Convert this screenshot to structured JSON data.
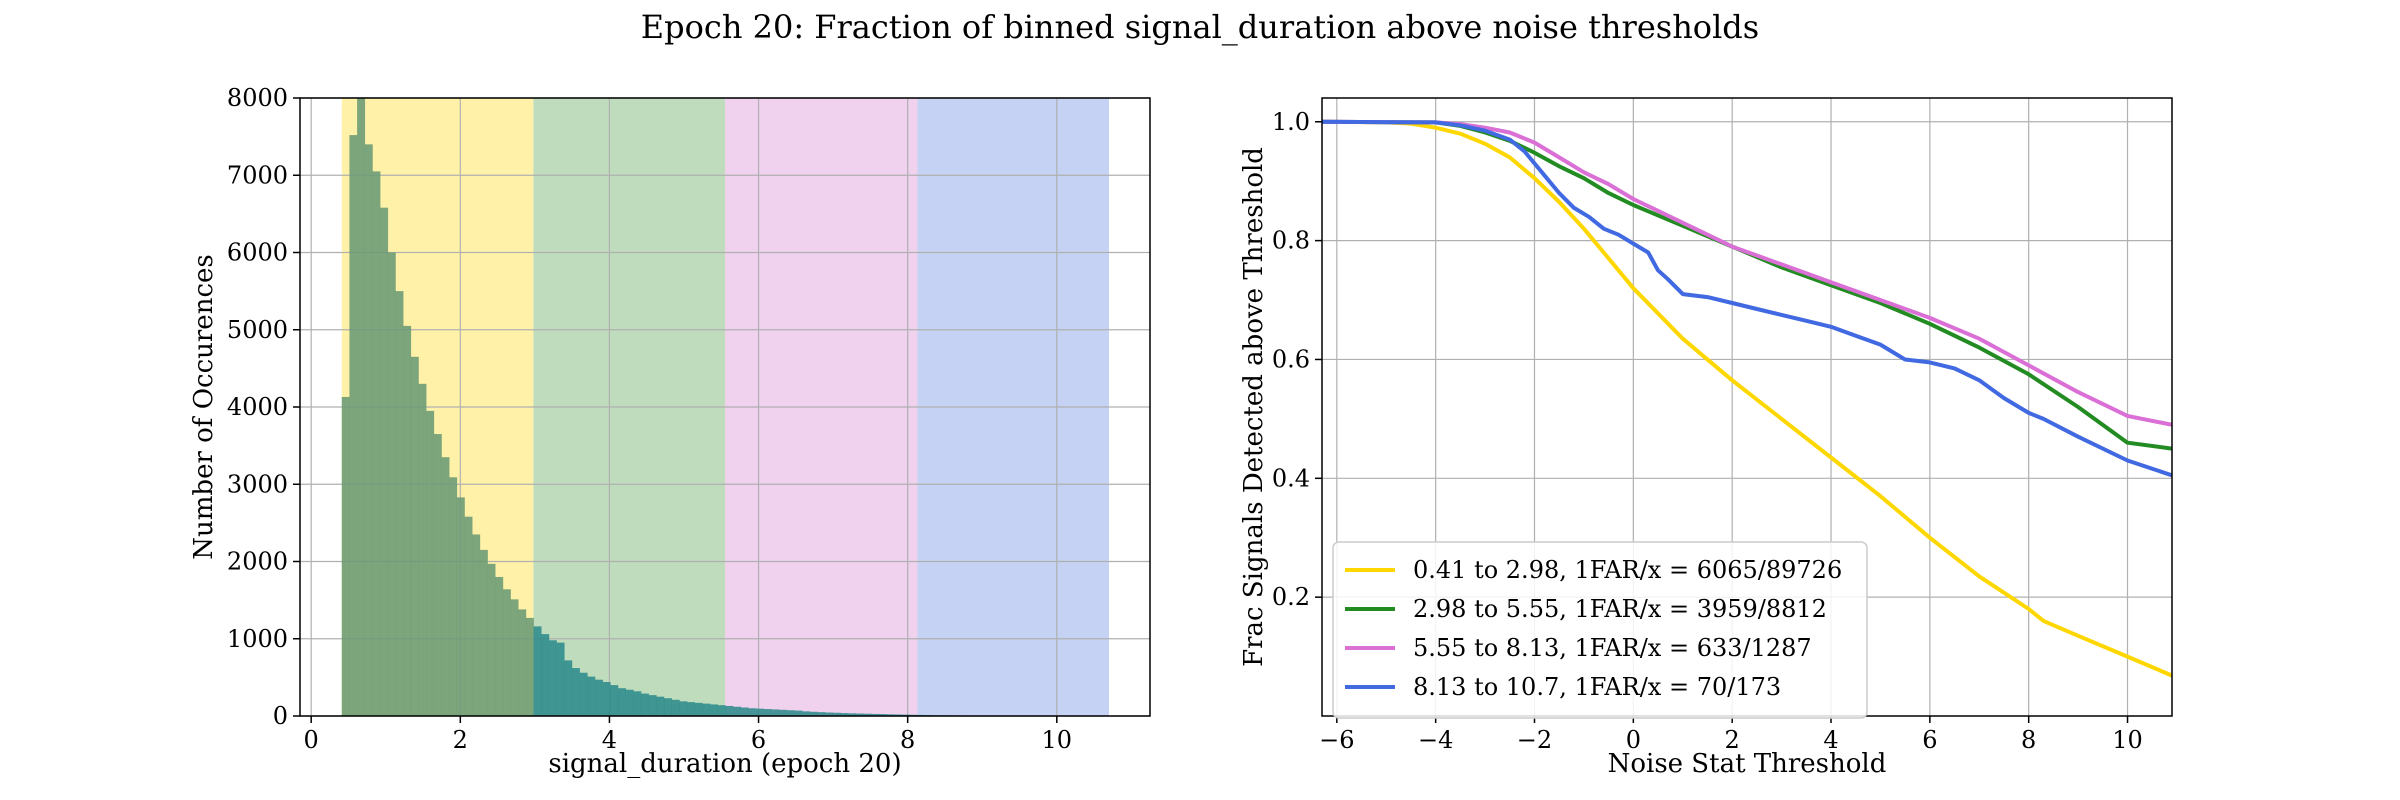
{
  "figure": {
    "suptitle": "Epoch 20: Fraction of binned signal_duration above noise thresholds"
  },
  "colors": {
    "hist_fill": "#6b9a74",
    "hist_tail": "#2e8b8b",
    "grid": "#b0b0b0",
    "bin_shades": [
      "#fff2a8",
      "#bfdcbc",
      "#f0d2ef",
      "#c5d2f3"
    ]
  },
  "chart_data": [
    {
      "type": "bar",
      "subtype": "histogram",
      "xlabel": "signal_duration (epoch 20)",
      "ylabel": "Number of Occurences",
      "xlim": [
        -0.15,
        11.25
      ],
      "ylim": [
        0,
        8000
      ],
      "xticks": [
        0,
        2,
        4,
        6,
        8,
        10
      ],
      "yticks": [
        0,
        1000,
        2000,
        3000,
        4000,
        5000,
        6000,
        7000,
        8000
      ],
      "grid": true,
      "shaded_bins": [
        {
          "from": 0.41,
          "to": 2.98,
          "color": "#fff2a8"
        },
        {
          "from": 2.98,
          "to": 5.55,
          "color": "#bfdcbc"
        },
        {
          "from": 5.55,
          "to": 8.13,
          "color": "#f0d2ef"
        },
        {
          "from": 8.13,
          "to": 10.7,
          "color": "#c5d2f3"
        }
      ],
      "bin_start": 0.41,
      "bin_width": 0.1029,
      "counts": [
        4130,
        7520,
        8000,
        7400,
        7050,
        6580,
        6000,
        5500,
        5050,
        4650,
        4300,
        3950,
        3650,
        3350,
        3090,
        2830,
        2580,
        2350,
        2150,
        1970,
        1800,
        1640,
        1510,
        1380,
        1270,
        1160,
        1060,
        980,
        950,
        720,
        620,
        560,
        510,
        470,
        440,
        400,
        360,
        340,
        320,
        290,
        270,
        250,
        230,
        210,
        190,
        180,
        170,
        160,
        150,
        140,
        130,
        120,
        110,
        100,
        95,
        90,
        85,
        80,
        75,
        70,
        60,
        55,
        50,
        45,
        42,
        38,
        35,
        32,
        30,
        27,
        25,
        22,
        20,
        18,
        16,
        14,
        12,
        10,
        9,
        8,
        7,
        6,
        5,
        5,
        4,
        4,
        3,
        3,
        3,
        2,
        2,
        2,
        2,
        1,
        1,
        1,
        1,
        1,
        1,
        1
      ]
    },
    {
      "type": "line",
      "xlabel": "Noise Stat Threshold",
      "ylabel": "Frac Signals Detected above Threshold",
      "xlim": [
        -6.3,
        10.9
      ],
      "ylim": [
        0.0,
        1.04
      ],
      "xticks": [
        -6,
        -4,
        -2,
        0,
        2,
        4,
        6,
        8,
        10
      ],
      "xtick_labels": [
        "−6",
        "−4",
        "−2",
        "0",
        "2",
        "4",
        "6",
        "8",
        "10"
      ],
      "yticks": [
        0.2,
        0.4,
        0.6,
        0.8,
        1.0
      ],
      "ytick_labels": [
        "0.2",
        "0.4",
        "0.6",
        "0.8",
        "1.0"
      ],
      "grid": true,
      "legend_position": "lower-left",
      "series": [
        {
          "name": "0.41 to 2.98, 1FAR/x = 6065/89726",
          "color": "#ffd700",
          "x": [
            -6.3,
            -5,
            -4.5,
            -4,
            -3.5,
            -3,
            -2.5,
            -2,
            -1.5,
            -1,
            -0.5,
            0,
            1,
            2,
            3,
            4,
            5,
            6,
            7,
            8,
            8.3,
            9,
            10,
            10.9
          ],
          "y": [
            1.0,
            0.999,
            0.997,
            0.99,
            0.98,
            0.963,
            0.94,
            0.905,
            0.865,
            0.82,
            0.77,
            0.72,
            0.635,
            0.565,
            0.5,
            0.435,
            0.37,
            0.3,
            0.235,
            0.18,
            0.16,
            0.135,
            0.1,
            0.068
          ]
        },
        {
          "name": "2.98 to 5.55, 1FAR/x = 3959/8812",
          "color": "#228b22",
          "x": [
            -6.3,
            -4,
            -3.5,
            -3,
            -2.5,
            -2,
            -1.5,
            -1,
            -0.5,
            0,
            1,
            2,
            3,
            4,
            5,
            6,
            7,
            8,
            9,
            10,
            10.9
          ],
          "y": [
            1.0,
            0.999,
            0.993,
            0.982,
            0.968,
            0.948,
            0.925,
            0.905,
            0.88,
            0.86,
            0.825,
            0.79,
            0.755,
            0.725,
            0.695,
            0.66,
            0.62,
            0.575,
            0.52,
            0.46,
            0.45
          ]
        },
        {
          "name": "5.55 to 8.13, 1FAR/x = 633/1287",
          "color": "#da70d6",
          "x": [
            -6.3,
            -4,
            -3.5,
            -3,
            -2.5,
            -2,
            -1.5,
            -1,
            -0.5,
            0,
            1,
            2,
            3,
            4,
            5,
            6,
            7,
            8,
            9,
            10,
            10.9
          ],
          "y": [
            1.0,
            0.999,
            0.996,
            0.99,
            0.982,
            0.965,
            0.94,
            0.915,
            0.895,
            0.87,
            0.83,
            0.79,
            0.76,
            0.73,
            0.7,
            0.67,
            0.635,
            0.59,
            0.545,
            0.505,
            0.49
          ]
        },
        {
          "name": "8.13 to 10.7, 1FAR/x = 70/173",
          "color": "#4169e1",
          "x": [
            -6.3,
            -4,
            -3.5,
            -3,
            -2.5,
            -2.2,
            -1.8,
            -1.5,
            -1.2,
            -0.9,
            -0.6,
            -0.3,
            0,
            0.3,
            0.5,
            0.7,
            1,
            1.5,
            2,
            2.5,
            3,
            3.5,
            4,
            4.5,
            5,
            5.5,
            6,
            6.5,
            7,
            7.5,
            8,
            8.3,
            9,
            10,
            10.9
          ],
          "y": [
            1.0,
            0.999,
            0.994,
            0.985,
            0.97,
            0.95,
            0.91,
            0.88,
            0.855,
            0.84,
            0.82,
            0.81,
            0.795,
            0.78,
            0.75,
            0.735,
            0.71,
            0.705,
            0.695,
            0.685,
            0.675,
            0.665,
            0.655,
            0.64,
            0.625,
            0.6,
            0.595,
            0.585,
            0.565,
            0.535,
            0.51,
            0.5,
            0.47,
            0.43,
            0.405
          ]
        }
      ]
    }
  ]
}
